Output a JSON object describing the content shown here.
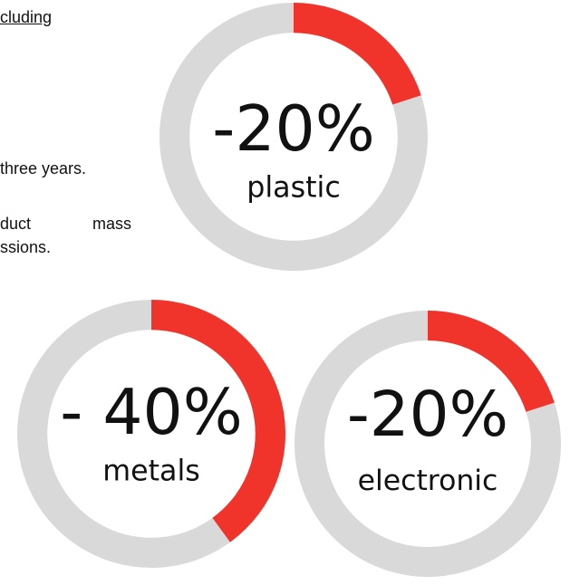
{
  "text_fragments": [
    "cluding",
    "three years.",
    "duct mass",
    "ssions."
  ],
  "colors": {
    "highlight": "#f0342b",
    "track": "#d9d9d9",
    "text": "#111111"
  },
  "chart_data": [
    {
      "type": "donut",
      "value_percent": 20,
      "value_label": "-20%",
      "category": "plastic"
    },
    {
      "type": "donut",
      "value_percent": 40,
      "value_label": "- 40%",
      "category": "metals"
    },
    {
      "type": "donut",
      "value_percent": 20,
      "value_label": "-20%",
      "category": "electronic"
    }
  ]
}
